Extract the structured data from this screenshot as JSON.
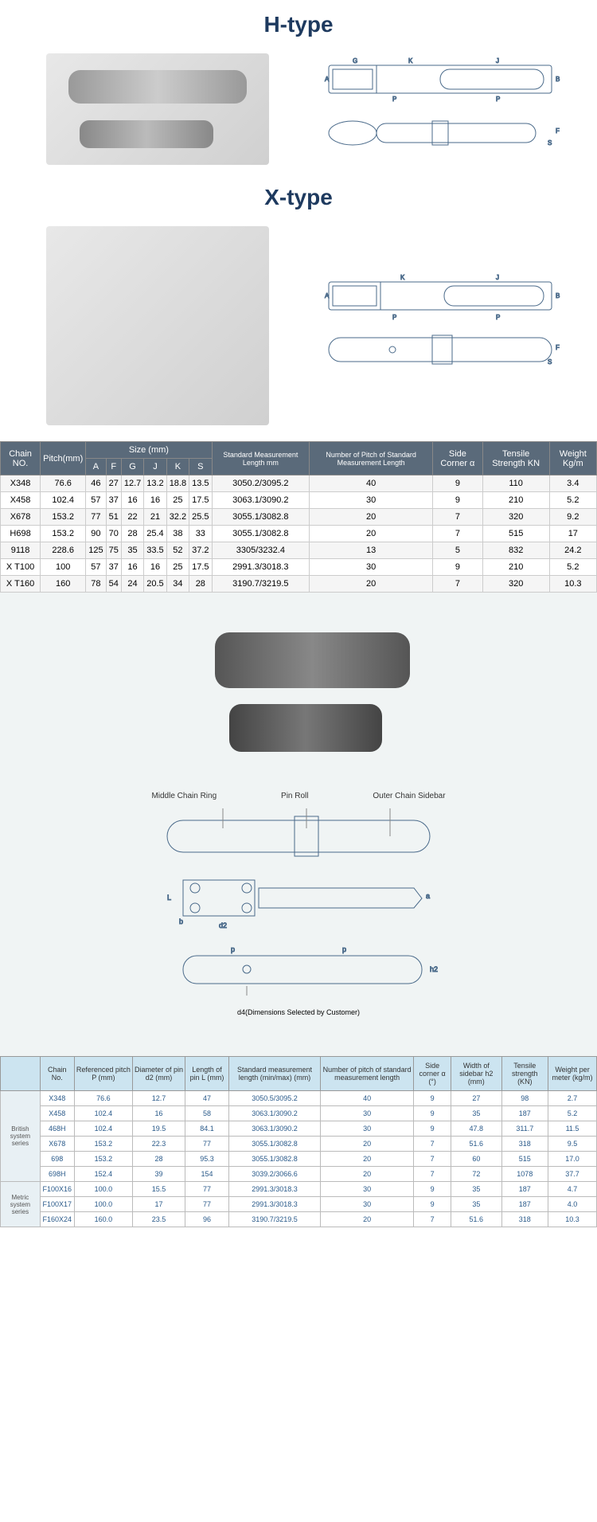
{
  "sections": {
    "htype_title": "H-type",
    "xtype_title": "X-type"
  },
  "table1": {
    "header_bg": "#5a6a7a",
    "header_color": "#ffffff",
    "headers": {
      "chain_no": "Chain NO.",
      "pitch": "Pitch(mm)",
      "size_group": "Size (mm)",
      "size_cols": [
        "A",
        "F",
        "G",
        "J",
        "K",
        "S"
      ],
      "std_length": "Standard Measurement Length mm",
      "num_pitch": "Number of Pitch of Standard Measurement Length",
      "side_corner": "Side Corner α",
      "tensile": "Tensile Strength KN",
      "weight": "Weight Kg/m"
    },
    "rows": [
      {
        "no": "X348",
        "pitch": "76.6",
        "A": "46",
        "F": "27",
        "G": "12.7",
        "J": "13.2",
        "K": "18.8",
        "S": "13.5",
        "std": "3050.2/3095.2",
        "np": "40",
        "sc": "9",
        "ts": "110",
        "w": "3.4"
      },
      {
        "no": "X458",
        "pitch": "102.4",
        "A": "57",
        "F": "37",
        "G": "16",
        "J": "16",
        "K": "25",
        "S": "17.5",
        "std": "3063.1/3090.2",
        "np": "30",
        "sc": "9",
        "ts": "210",
        "w": "5.2"
      },
      {
        "no": "X678",
        "pitch": "153.2",
        "A": "77",
        "F": "51",
        "G": "22",
        "J": "21",
        "K": "32.2",
        "S": "25.5",
        "std": "3055.1/3082.8",
        "np": "20",
        "sc": "7",
        "ts": "320",
        "w": "9.2"
      },
      {
        "no": "H698",
        "pitch": "153.2",
        "A": "90",
        "F": "70",
        "G": "28",
        "J": "25.4",
        "K": "38",
        "S": "33",
        "std": "3055.1/3082.8",
        "np": "20",
        "sc": "7",
        "ts": "515",
        "w": "17"
      },
      {
        "no": "9118",
        "pitch": "228.6",
        "A": "125",
        "F": "75",
        "G": "35",
        "J": "33.5",
        "K": "52",
        "S": "37.2",
        "std": "3305/3232.4",
        "np": "13",
        "sc": "5",
        "ts": "832",
        "w": "24.2"
      },
      {
        "no": "X T100",
        "pitch": "100",
        "A": "57",
        "F": "37",
        "G": "16",
        "J": "16",
        "K": "25",
        "S": "17.5",
        "std": "2991.3/3018.3",
        "np": "30",
        "sc": "9",
        "ts": "210",
        "w": "5.2"
      },
      {
        "no": "X T160",
        "pitch": "160",
        "A": "78",
        "F": "54",
        "G": "24",
        "J": "20.5",
        "K": "34",
        "S": "28",
        "std": "3190.7/3219.5",
        "np": "20",
        "sc": "7",
        "ts": "320",
        "w": "10.3"
      }
    ]
  },
  "annotations": {
    "middle_ring": "Middle Chain Ring",
    "pin_roll": "Pin Roll",
    "outer_sidebar": "Outer Chain Sidebar",
    "d4_note": "d4(Dimensions Selected by Customer)",
    "dim_labels": [
      "L",
      "b",
      "d2",
      "a",
      "p",
      "h2"
    ]
  },
  "table2": {
    "header_bg": "#cce4f0",
    "cell_color": "#2a5a8a",
    "headers": {
      "chain_no": "Chain No.",
      "ref_pitch": "Referenced pitch P (mm)",
      "dia_pin": "Diameter of pin d2 (mm)",
      "len_pin": "Length of pin L (mm)",
      "std_length": "Standard measurement length (min/max) (mm)",
      "num_pitch": "Number of pitch of standard measurement length",
      "side_corner": "Side corner α (°)",
      "width_sidebar": "Width of sidebar h2 (mm)",
      "tensile": "Tensile strength (KN)",
      "weight": "Weight per meter (kg/m)"
    },
    "series1_label": "British system series",
    "series2_label": "Metric system series",
    "series1_rows": [
      {
        "no": "X348",
        "p": "76.6",
        "d2": "12.7",
        "L": "47",
        "std": "3050.5/3095.2",
        "np": "40",
        "sc": "9",
        "ws": "27",
        "ts": "98",
        "w": "2.7"
      },
      {
        "no": "X458",
        "p": "102.4",
        "d2": "16",
        "L": "58",
        "std": "3063.1/3090.2",
        "np": "30",
        "sc": "9",
        "ws": "35",
        "ts": "187",
        "w": "5.2"
      },
      {
        "no": "468H",
        "p": "102.4",
        "d2": "19.5",
        "L": "84.1",
        "std": "3063.1/3090.2",
        "np": "30",
        "sc": "9",
        "ws": "47.8",
        "ts": "311.7",
        "w": "11.5"
      },
      {
        "no": "X678",
        "p": "153.2",
        "d2": "22.3",
        "L": "77",
        "std": "3055.1/3082.8",
        "np": "20",
        "sc": "7",
        "ws": "51.6",
        "ts": "318",
        "w": "9.5"
      },
      {
        "no": "698",
        "p": "153.2",
        "d2": "28",
        "L": "95.3",
        "std": "3055.1/3082.8",
        "np": "20",
        "sc": "7",
        "ws": "60",
        "ts": "515",
        "w": "17.0"
      },
      {
        "no": "698H",
        "p": "152.4",
        "d2": "39",
        "L": "154",
        "std": "3039.2/3066.6",
        "np": "20",
        "sc": "7",
        "ws": "72",
        "ts": "1078",
        "w": "37.7"
      }
    ],
    "series2_rows": [
      {
        "no": "F100X16",
        "p": "100.0",
        "d2": "15.5",
        "L": "77",
        "std": "2991.3/3018.3",
        "np": "30",
        "sc": "9",
        "ws": "35",
        "ts": "187",
        "w": "4.7"
      },
      {
        "no": "F100X17",
        "p": "100.0",
        "d2": "17",
        "L": "77",
        "std": "2991.3/3018.3",
        "np": "30",
        "sc": "9",
        "ws": "35",
        "ts": "187",
        "w": "4.0"
      },
      {
        "no": "F160X24",
        "p": "160.0",
        "d2": "23.5",
        "L": "96",
        "std": "3190.7/3219.5",
        "np": "20",
        "sc": "7",
        "ws": "51.6",
        "ts": "318",
        "w": "10.3"
      }
    ]
  },
  "colors": {
    "title": "#1e3a5f",
    "schematic_stroke": "#4a6a8a"
  }
}
